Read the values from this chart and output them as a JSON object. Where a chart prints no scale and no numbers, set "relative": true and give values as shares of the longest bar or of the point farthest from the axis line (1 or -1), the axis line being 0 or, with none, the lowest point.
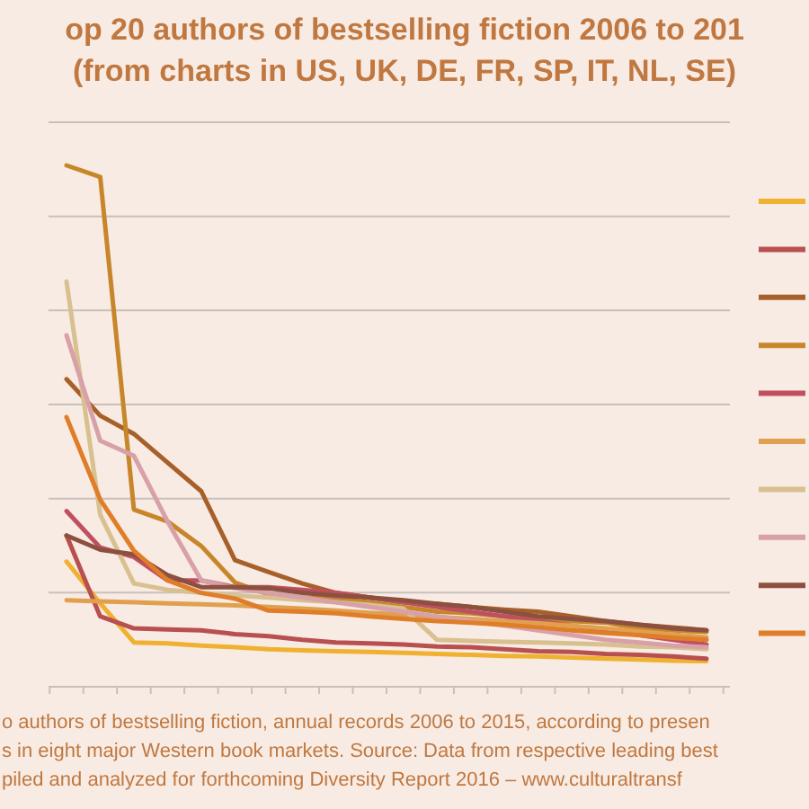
{
  "chart_data": {
    "type": "line",
    "title": "op 20 authors of bestselling fiction 2006 to 201",
    "subtitle": "(from charts in US, UK, DE, FR, SP, IT, NL, SE)",
    "relative": true,
    "grid": "y",
    "marker": "none",
    "categories": [
      null,
      null,
      null,
      null,
      null,
      null,
      null,
      null,
      null,
      null,
      null,
      null,
      null,
      null,
      null,
      null,
      null,
      null,
      null,
      null
    ],
    "series": [
      {
        "color": "#f0b030",
        "values": [
          0.24,
          0.16,
          0.085,
          0.083,
          0.079,
          0.076,
          0.072,
          0.07,
          0.068,
          0.067,
          0.065,
          0.063,
          0.061,
          0.059,
          0.058,
          0.056,
          0.054,
          0.052,
          0.05,
          0.049
        ]
      },
      {
        "color": "#b85050",
        "values": [
          0.29,
          0.135,
          0.112,
          0.11,
          0.108,
          0.101,
          0.097,
          0.09,
          0.085,
          0.083,
          0.081,
          0.077,
          0.076,
          0.072,
          0.068,
          0.067,
          0.063,
          0.061,
          0.058,
          0.054
        ]
      },
      {
        "color": "#a8602a",
        "values": [
          0.59,
          0.52,
          0.485,
          0.43,
          0.375,
          0.243,
          0.22,
          0.198,
          0.18,
          0.171,
          0.162,
          0.159,
          0.153,
          0.148,
          0.144,
          0.135,
          0.126,
          0.119,
          0.114,
          0.108
        ]
      },
      {
        "color": "#c8862a",
        "values": [
          1,
          0.978,
          0.34,
          0.317,
          0.27,
          0.2,
          0.177,
          0.171,
          0.168,
          0.162,
          0.153,
          0.144,
          0.141,
          0.135,
          0.13,
          0.126,
          0.123,
          0.112,
          0.108,
          0.105
        ]
      },
      {
        "color": "#c05060",
        "values": [
          0.337,
          0.267,
          0.249,
          0.204,
          0.204,
          0.191,
          0.191,
          0.186,
          0.18,
          0.171,
          0.162,
          0.153,
          0.144,
          0.135,
          0.126,
          0.117,
          0.108,
          0.099,
          0.09,
          0.081
        ]
      },
      {
        "color": "#e0a050",
        "values": [
          0.166,
          0.164,
          0.162,
          0.16,
          0.158,
          0.156,
          0.153,
          0.15,
          0.146,
          0.142,
          0.138,
          0.134,
          0.13,
          0.126,
          0.122,
          0.117,
          0.112,
          0.106,
          0.1,
          0.095
        ]
      },
      {
        "color": "#d8c090",
        "values": [
          0.777,
          0.33,
          0.198,
          0.186,
          0.18,
          0.175,
          0.171,
          0.166,
          0.162,
          0.157,
          0.15,
          0.09,
          0.088,
          0.086,
          0.085,
          0.083,
          0.081,
          0.077,
          0.076,
          0.072
        ]
      },
      {
        "color": "#d8a0a8",
        "values": [
          0.674,
          0.472,
          0.443,
          0.317,
          0.204,
          0.189,
          0.18,
          0.171,
          0.162,
          0.153,
          0.144,
          0.135,
          0.126,
          0.117,
          0.108,
          0.099,
          0.09,
          0.085,
          0.079,
          0.076
        ]
      },
      {
        "color": "#8c5040",
        "values": [
          0.29,
          0.263,
          0.254,
          0.214,
          0.191,
          0.191,
          0.189,
          0.18,
          0.175,
          0.171,
          0.166,
          0.159,
          0.153,
          0.144,
          0.135,
          0.13,
          0.126,
          0.119,
          0.112,
          0.108
        ]
      },
      {
        "color": "#e07d28",
        "values": [
          0.517,
          0.359,
          0.261,
          0.204,
          0.18,
          0.169,
          0.146,
          0.144,
          0.141,
          0.135,
          0.13,
          0.126,
          0.123,
          0.119,
          0.114,
          0.108,
          0.103,
          0.099,
          0.094,
          0.09
        ]
      }
    ],
    "annotations": [
      "o authors of bestselling fiction, annual records 2006 to 2015, according to presen",
      "s in eight major Western book markets. Source: Data from respective leading best",
      "piled and analyzed for forthcoming Diversity Report 2016 – www.culturaltransf"
    ]
  }
}
